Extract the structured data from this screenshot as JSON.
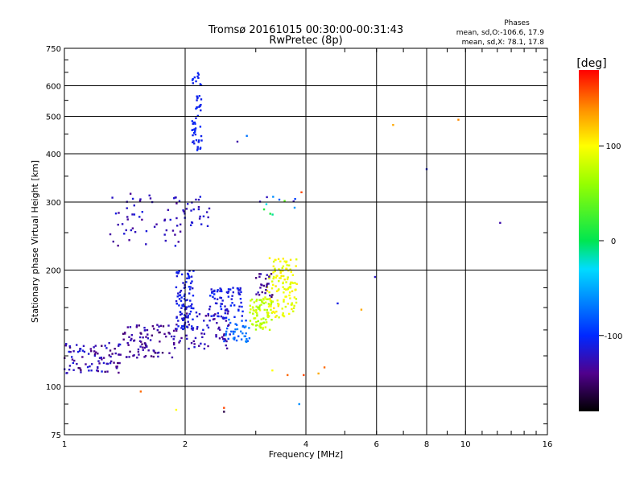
{
  "chart_data": {
    "type": "scatter",
    "title": "Tromsø 20161015 00:30:00-00:31:43",
    "subtitle": "RwPretec (8p)",
    "xlabel": "Frequency [MHz]",
    "ylabel": "Stationary phase Virtual Height [km]",
    "x_scale": "log",
    "y_scale": "log",
    "xlim": [
      1,
      16
    ],
    "ylim": [
      75,
      750
    ],
    "x_ticks": [
      1,
      2,
      4,
      6,
      8,
      10,
      16
    ],
    "y_ticks": [
      75,
      100,
      200,
      300,
      400,
      500,
      600,
      750
    ],
    "grid": true,
    "stats": {
      "heading": "Phases",
      "line_o": "mean, sd,O:-106.6, 17.9",
      "line_x": "mean, sd,X:  78.1, 17.8"
    },
    "colorbar": {
      "label": "[deg]",
      "range": [
        -180,
        180
      ],
      "ticks": [
        100,
        0,
        -100
      ],
      "colors": [
        "#ff0000",
        "#ff8000",
        "#ffff00",
        "#00ff00",
        "#00ffff",
        "#0000ff",
        "#400080",
        "#000000"
      ]
    },
    "clusters": [
      {
        "x": [
          1.0,
          1.4
        ],
        "y": [
          108,
          130
        ],
        "phase": [
          -110,
          -150
        ],
        "n": 90
      },
      {
        "x": [
          1.4,
          1.9
        ],
        "y": [
          118,
          145
        ],
        "phase": [
          -120,
          -150
        ],
        "n": 90
      },
      {
        "x": [
          1.9,
          2.6
        ],
        "y": [
          125,
          160
        ],
        "phase": [
          -110,
          -140
        ],
        "n": 80
      },
      {
        "x": [
          1.9,
          2.1
        ],
        "y": [
          140,
          200
        ],
        "phase": [
          -100,
          -120
        ],
        "n": 90
      },
      {
        "x": [
          2.3,
          2.8
        ],
        "y": [
          150,
          180
        ],
        "phase": [
          -100,
          -120
        ],
        "n": 70
      },
      {
        "x": [
          2.5,
          2.9
        ],
        "y": [
          130,
          150
        ],
        "phase": [
          -60,
          -90
        ],
        "n": 40
      },
      {
        "x": [
          2.9,
          3.3
        ],
        "y": [
          140,
          170
        ],
        "phase": [
          60,
          90
        ],
        "n": 80
      },
      {
        "x": [
          3.2,
          3.8
        ],
        "y": [
          150,
          215
        ],
        "phase": [
          80,
          110
        ],
        "n": 130
      },
      {
        "x": [
          3.0,
          3.3
        ],
        "y": [
          170,
          200
        ],
        "phase": [
          -120,
          -150
        ],
        "n": 25
      },
      {
        "x": [
          2.08,
          2.2
        ],
        "y": [
          400,
          650
        ],
        "phase": [
          -100,
          -110
        ],
        "n": 55
      },
      {
        "x": [
          1.3,
          1.95
        ],
        "y": [
          230,
          320
        ],
        "phase": [
          -110,
          -140
        ],
        "n": 55
      },
      {
        "x": [
          1.95,
          2.3
        ],
        "y": [
          260,
          310
        ],
        "phase": [
          -110,
          -130
        ],
        "n": 25
      },
      {
        "x": [
          3.0,
          3.8
        ],
        "y": [
          275,
          310
        ],
        "phase": [
          -140,
          90
        ],
        "n": 12
      }
    ],
    "outliers": [
      {
        "x": 6.6,
        "y": 475,
        "phase": 130
      },
      {
        "x": 9.6,
        "y": 490,
        "phase": 140
      },
      {
        "x": 8.0,
        "y": 365,
        "phase": -110
      },
      {
        "x": 12.2,
        "y": 265,
        "phase": -130
      },
      {
        "x": 5.95,
        "y": 192,
        "phase": -120
      },
      {
        "x": 4.8,
        "y": 164,
        "phase": -110
      },
      {
        "x": 4.3,
        "y": 108,
        "phase": 130
      },
      {
        "x": 4.45,
        "y": 112,
        "phase": 150
      },
      {
        "x": 5.5,
        "y": 158,
        "phase": 130
      },
      {
        "x": 3.6,
        "y": 107,
        "phase": 150
      },
      {
        "x": 3.95,
        "y": 107,
        "phase": 160
      },
      {
        "x": 3.85,
        "y": 90,
        "phase": -60
      },
      {
        "x": 2.5,
        "y": 88,
        "phase": 160
      },
      {
        "x": 2.5,
        "y": 86,
        "phase": -160
      },
      {
        "x": 1.55,
        "y": 97,
        "phase": 150
      },
      {
        "x": 1.9,
        "y": 87,
        "phase": 100
      },
      {
        "x": 2.85,
        "y": 445,
        "phase": -70
      },
      {
        "x": 2.7,
        "y": 430,
        "phase": -130
      },
      {
        "x": 3.9,
        "y": 318,
        "phase": 160
      },
      {
        "x": 3.3,
        "y": 110,
        "phase": 100
      }
    ]
  }
}
